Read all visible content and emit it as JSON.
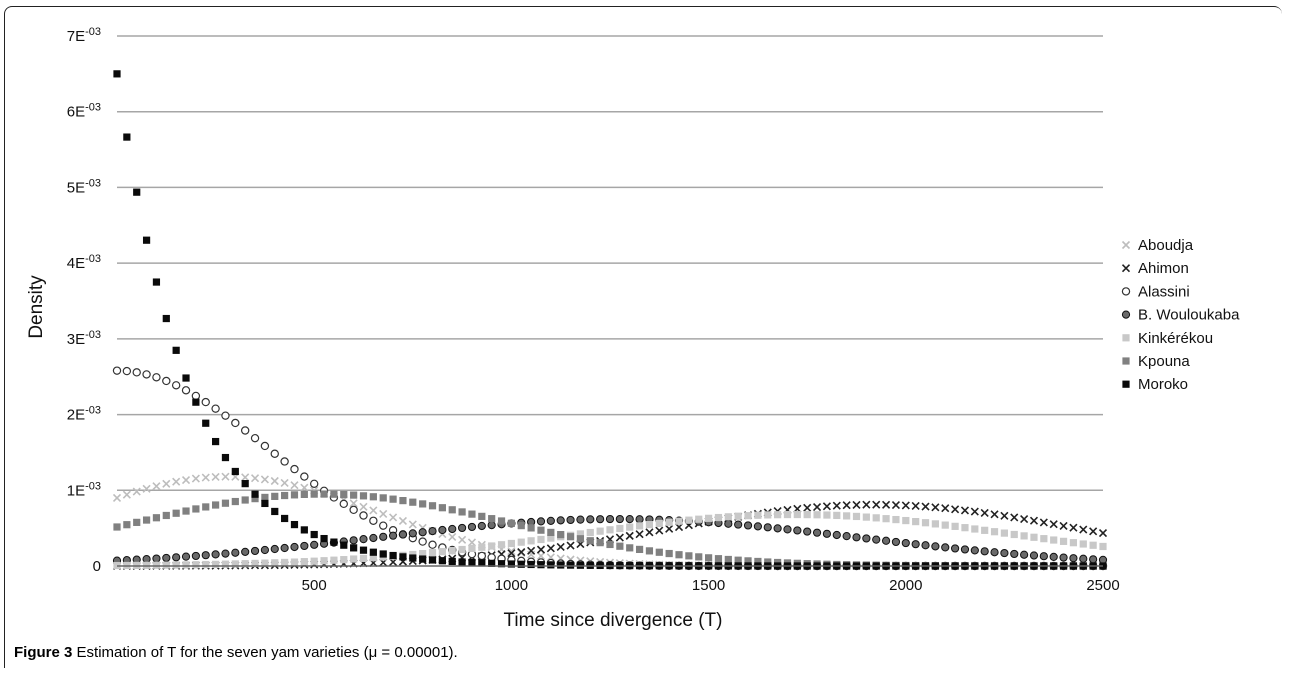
{
  "figure": {
    "caption_label": "Figure 3",
    "caption_text": "Estimation of T for the seven yam varieties (μ = 0.00001)."
  },
  "chart_data": {
    "type": "scatter",
    "xlabel": "Time since divergence (T)",
    "ylabel": "Density",
    "xlim": [
      0,
      2500
    ],
    "ylim": [
      0,
      0.007
    ],
    "x_ticks": [
      {
        "value": 500,
        "label": "500"
      },
      {
        "value": 1000,
        "label": "1000"
      },
      {
        "value": 1500,
        "label": "1500"
      },
      {
        "value": 2000,
        "label": "2000"
      },
      {
        "value": 2500,
        "label": "2500"
      }
    ],
    "y_ticks": [
      {
        "value": 0,
        "label": "0"
      },
      {
        "value": 0.001,
        "label": "1E",
        "exp": "-03"
      },
      {
        "value": 0.002,
        "label": "2E",
        "exp": "-03"
      },
      {
        "value": 0.003,
        "label": "3E",
        "exp": "-03"
      },
      {
        "value": 0.004,
        "label": "4E",
        "exp": "-03"
      },
      {
        "value": 0.005,
        "label": "5E",
        "exp": "-03"
      },
      {
        "value": 0.006,
        "label": "6E",
        "exp": "-03"
      },
      {
        "value": 0.007,
        "label": "7E",
        "exp": "-03"
      }
    ],
    "grid": "horizontal",
    "legend_position": "right",
    "x_step": 25,
    "series": [
      {
        "name": "Aboudja",
        "marker": "x",
        "color": "#bdbdbd",
        "curve": {
          "kind": "gauss",
          "peak": 0.00118,
          "mu": 280,
          "sigma": 380
        }
      },
      {
        "name": "Ahimon",
        "marker": "x",
        "color": "#222222",
        "curve": {
          "kind": "gauss",
          "peak": 0.00081,
          "mu": 1920,
          "sigma": 520
        }
      },
      {
        "name": "Alassini",
        "marker": "circle-open",
        "color": "#333333",
        "curve": {
          "kind": "gauss",
          "peak": 0.00258,
          "mu": 0,
          "sigma": 380
        }
      },
      {
        "name": "B. Wouloukaba",
        "marker": "circle-filled",
        "color": "#555555",
        "curve": {
          "kind": "gauss",
          "peak": 0.00062,
          "mu": 1270,
          "sigma": 610
        }
      },
      {
        "name": "Kinkérékou",
        "marker": "square",
        "color": "#c8c8c8",
        "curve": {
          "kind": "gauss",
          "peak": 0.00068,
          "mu": 1720,
          "sigma": 560
        }
      },
      {
        "name": "Kpouna",
        "marker": "square",
        "color": "#808080",
        "curve": {
          "kind": "gauss",
          "peak": 0.00095,
          "mu": 520,
          "sigma": 470
        }
      },
      {
        "name": "Moroko",
        "marker": "square",
        "color": "#0a0a0a",
        "curve": {
          "kind": "exp",
          "a": 0.0065,
          "rate": 0.0055
        }
      }
    ]
  }
}
